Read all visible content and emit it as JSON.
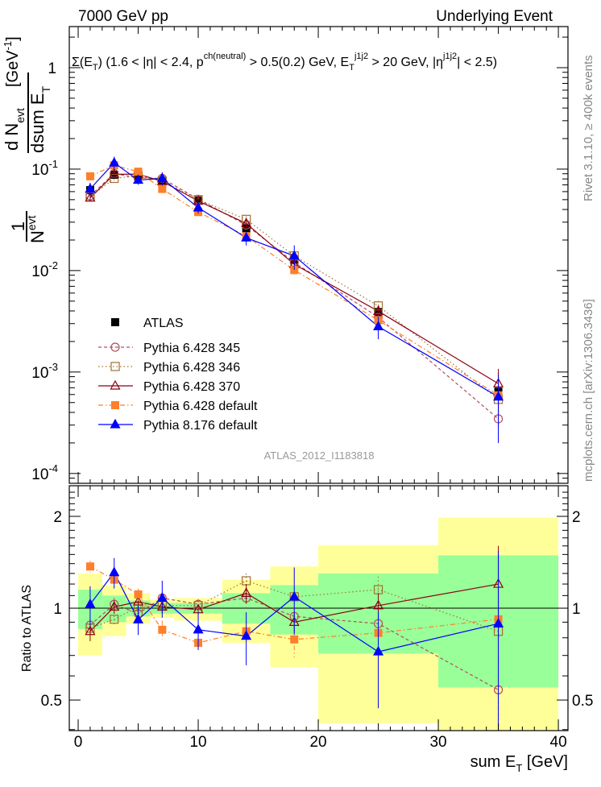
{
  "header": {
    "left": "7000 GeV pp",
    "right": "Underlying Event"
  },
  "side_text": {
    "rivet": "Rivet 3.1.10, ≥ 400k events",
    "mcplots": "mcplots.cern.ch [arXiv:1306.3436]"
  },
  "analysis_label": "ATLAS_2012_I1183818",
  "chart_data": {
    "type": "scatter",
    "title_segments": [
      {
        "t": "Σ(E",
        "s": "n"
      },
      {
        "t": "T",
        "s": "sub"
      },
      {
        "t": ") (1.6 < |η| < 2.4, p",
        "s": "n"
      },
      {
        "t": "ch(neutral)",
        "s": "sup"
      },
      {
        "t": " > 0.5(0.2) GeV, E",
        "s": "n"
      },
      {
        "t": "T",
        "s": "sub"
      },
      {
        "t": "j1j2",
        "s": "sup"
      },
      {
        "t": " > 20 GeV, |η",
        "s": "n"
      },
      {
        "t": "j1j2",
        "s": "sup"
      },
      {
        "t": "| < 2.5)",
        "s": "n"
      }
    ],
    "ylabel": {
      "one": "1",
      "nevt": "N",
      "evt": "evt",
      "dn": "d N",
      "dsum": "dsum E",
      "T": "T",
      "unit": "[GeV",
      "unit_exp": "-1",
      "close": "]"
    },
    "xlabel": {
      "main": "sum E",
      "sub": "T",
      "unit": " [GeV]"
    },
    "ratio_ylabel": "Ratio to ATLAS",
    "xlim": [
      -0.74,
      40.8
    ],
    "ylim": [
      8e-05,
      2.54
    ],
    "yscale": "log",
    "ratio_ylim": [
      0.397,
      2.52
    ],
    "x_ticks": [
      "0",
      "10",
      "20",
      "30",
      "40"
    ],
    "y_ticks": [
      {
        "m": "10",
        "e": "-4",
        "v": 0.0001
      },
      {
        "m": "10",
        "e": "-3",
        "v": 0.001
      },
      {
        "m": "10",
        "e": "-2",
        "v": 0.01
      },
      {
        "m": "10",
        "e": "-1",
        "v": 0.1
      },
      {
        "m": "1",
        "e": "",
        "v": 1
      }
    ],
    "ratio_ticks": [
      "0.5",
      "1",
      "2"
    ],
    "bin_edges": [
      0,
      2,
      4,
      6,
      8,
      12,
      16,
      20,
      30,
      40
    ],
    "x": [
      1,
      3,
      5,
      7,
      10,
      14,
      18,
      25,
      35
    ],
    "data": {
      "name": "ATLAS",
      "values": [
        0.062,
        0.088,
        0.085,
        0.075,
        0.049,
        0.026,
        0.0128,
        0.0039,
        0.00064
      ],
      "rel_err": [
        0.05,
        0.05,
        0.05,
        0.05,
        0.04,
        0.06,
        0.1,
        0.15,
        0.55
      ],
      "band_inner": [
        [
          0.855,
          1.15
        ],
        [
          0.9,
          1.1
        ],
        [
          0.94,
          1.06
        ],
        [
          0.96,
          1.04
        ],
        [
          0.96,
          1.04
        ],
        [
          0.89,
          1.12
        ],
        [
          0.82,
          1.19
        ],
        [
          0.71,
          1.3
        ],
        [
          0.55,
          1.49
        ]
      ],
      "band_outer": [
        [
          0.7,
          1.3
        ],
        [
          0.81,
          1.19
        ],
        [
          0.89,
          1.12
        ],
        [
          0.93,
          1.07
        ],
        [
          0.91,
          1.08
        ],
        [
          0.77,
          1.24
        ],
        [
          0.64,
          1.37
        ],
        [
          0.42,
          1.61
        ],
        [
          0.35,
          1.98
        ]
      ]
    },
    "series": [
      {
        "name": "Pythia 6.428 345",
        "color": "#b0505a",
        "marker": "open-circle",
        "dash": "4,3",
        "ratio": [
          0.88,
          1.03,
          0.96,
          1.08,
          1.03,
          1.08,
          0.94,
          0.89,
          0.54
        ],
        "ratio_err": [
          0.04,
          0.05,
          0.05,
          0.05,
          0.04,
          0.07,
          0.07,
          0.1,
          0.4
        ]
      },
      {
        "name": "Pythia 6.428 346",
        "color": "#a07030",
        "marker": "open-square",
        "dash": "1.5,3",
        "ratio": [
          0.86,
          0.92,
          1.01,
          1.02,
          1.02,
          1.23,
          1.09,
          1.15,
          0.84
        ],
        "ratio_err": [
          0.04,
          0.05,
          0.05,
          0.05,
          0.04,
          0.07,
          0.07,
          0.12,
          0.4
        ]
      },
      {
        "name": "Pythia 6.428 370",
        "color": "#8b0012",
        "marker": "open-triangle",
        "dash": "",
        "ratio": [
          0.84,
          1.01,
          1.05,
          1.01,
          0.99,
          1.12,
          0.9,
          1.02,
          1.2
        ],
        "ratio_err": [
          0.06,
          0.05,
          0.05,
          0.05,
          0.04,
          0.08,
          0.07,
          0.1,
          0.4
        ]
      },
      {
        "name": "Pythia 6.428 default",
        "color": "#ff7f2a",
        "marker": "filled-square",
        "dash": "6,3,1.5,3",
        "ratio": [
          1.37,
          1.24,
          1.11,
          0.85,
          0.77,
          0.84,
          0.79,
          0.83,
          0.92
        ],
        "ratio_err": [
          0.06,
          0.05,
          0.05,
          0.06,
          0.05,
          0.07,
          0.1,
          0.1,
          0.4
        ]
      },
      {
        "name": "Pythia 8.176 default",
        "color": "#0000ff",
        "marker": "filled-triangle",
        "dash": "",
        "ratio": [
          1.03,
          1.31,
          0.917,
          1.08,
          0.85,
          0.81,
          1.09,
          0.72,
          0.89
        ],
        "ratio_err": [
          0.15,
          0.15,
          0.1,
          0.15,
          0.12,
          0.16,
          0.27,
          0.25,
          0.65
        ]
      }
    ],
    "legend_placement": "lower-left"
  }
}
